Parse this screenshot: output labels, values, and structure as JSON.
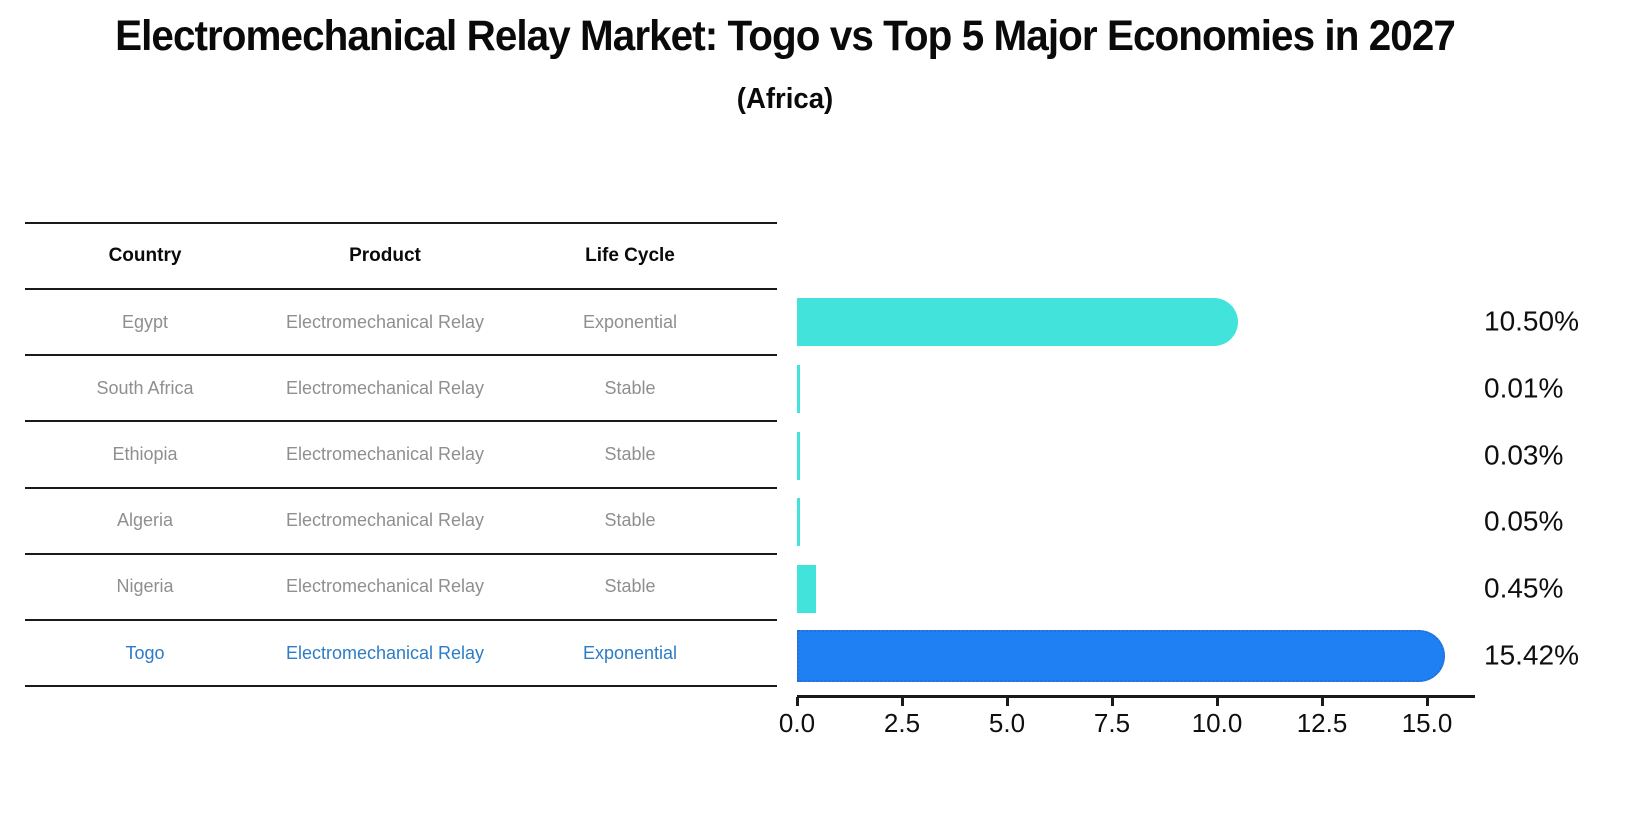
{
  "header": {
    "title": "Electromechanical Relay Market: Togo vs Top 5 Major Economies in 2027",
    "subtitle": "(Africa)"
  },
  "table": {
    "columns": [
      "Country",
      "Product",
      "Life Cycle"
    ],
    "rows": [
      {
        "country": "Egypt",
        "product": "Electromechanical Relay",
        "life_cycle": "Exponential",
        "highlight": false
      },
      {
        "country": "South Africa",
        "product": "Electromechanical Relay",
        "life_cycle": "Stable",
        "highlight": false
      },
      {
        "country": "Ethiopia",
        "product": "Electromechanical Relay",
        "life_cycle": "Stable",
        "highlight": false
      },
      {
        "country": "Algeria",
        "product": "Electromechanical Relay",
        "life_cycle": "Stable",
        "highlight": false
      },
      {
        "country": "Nigeria",
        "product": "Electromechanical Relay",
        "life_cycle": "Stable",
        "highlight": false
      },
      {
        "country": "Togo",
        "product": "Electromechanical Relay",
        "life_cycle": "Exponential",
        "highlight": true
      }
    ]
  },
  "chart_data": {
    "type": "bar",
    "orientation": "horizontal",
    "title": "Electromechanical Relay Market: Togo vs Top 5 Major Economies in 2027",
    "subtitle": "(Africa)",
    "categories": [
      "Egypt",
      "South Africa",
      "Ethiopia",
      "Algeria",
      "Nigeria",
      "Togo"
    ],
    "values": [
      10.5,
      0.01,
      0.03,
      0.05,
      0.45,
      15.42
    ],
    "value_labels": [
      "10.50%",
      "0.01%",
      "0.03%",
      "0.05%",
      "0.45%",
      "15.42%"
    ],
    "x_ticks": [
      "0.0",
      "2.5",
      "5.0",
      "7.5",
      "10.0",
      "12.5",
      "15.0"
    ],
    "xlim": [
      0,
      16.2
    ],
    "grid": false,
    "legend": "none",
    "highlight_index": 5,
    "colors": {
      "bar_default": "#42e3da",
      "bar_highlight": "#1e80f2",
      "bar_highlight_border": "#2a6fd0",
      "highlight_text": "#2d7cc6",
      "table_text": "#8f8f8f",
      "axis": "#1a1a1a"
    }
  }
}
